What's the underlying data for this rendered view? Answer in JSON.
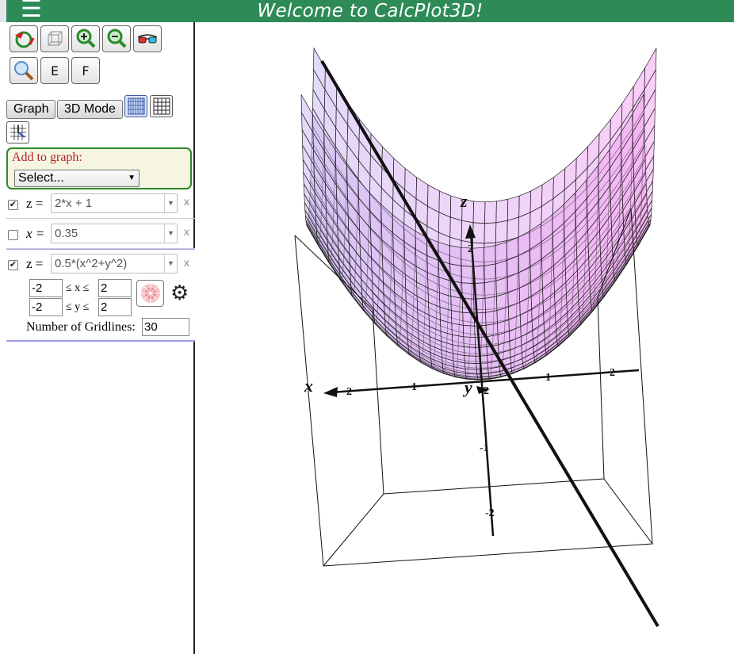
{
  "header": {
    "menu_glyph": "☰",
    "title": "Welcome to CalcPlot3D!"
  },
  "toolbar": {
    "icons": [
      "reset-view-icon",
      "box-view-icon",
      "zoom-in-icon",
      "zoom-out-icon",
      "3d-glasses-icon",
      "magnifier-icon"
    ],
    "e_label": "E",
    "f_label": "F"
  },
  "panel": {
    "graph_button": "Graph",
    "mode_button": "3D Mode",
    "add_label": "Add to graph:",
    "select_value": "Select...",
    "select_arrow": "▼"
  },
  "equations": [
    {
      "lhs": "z =",
      "value": "2*x + 1",
      "checked": true,
      "remove": "x"
    },
    {
      "lhs": "x =",
      "value": "0.35",
      "checked": false,
      "remove": "x"
    },
    {
      "lhs": "z =",
      "value": "0.5*(x^2+y^2)",
      "checked": true,
      "remove": "x",
      "x_min": "-2",
      "x_max": "2",
      "y_min": "-2",
      "y_max": "2",
      "x_range_label": "≤ x ≤",
      "y_range_label": "≤ y ≤",
      "gridlines_label": "Number of Gridlines:",
      "gridlines": "30"
    }
  ],
  "checkmark": "✔",
  "gear_glyph": "⚙",
  "plot": {
    "axis_x": "x",
    "axis_y": "y",
    "axis_z": "z",
    "x_ticks": [
      "2",
      "1"
    ],
    "y_ticks": [
      "1",
      "2"
    ],
    "z_ticks": [
      "2",
      "-1",
      "-2"
    ],
    "origin_tick": "2",
    "surface_color": "#e6b3e6"
  }
}
